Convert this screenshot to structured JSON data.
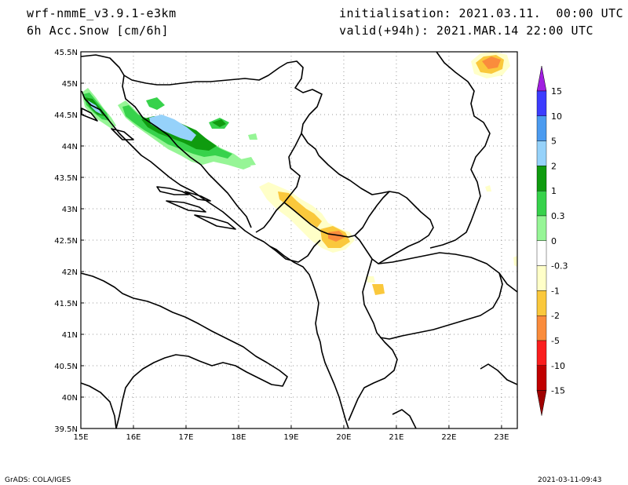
{
  "header": {
    "model": "wrf-nmmE_v3.9.1-e3km",
    "field": "6h Acc.Snow [cm/6h]",
    "init": "initialisation: 2021.03.11.  00:00 UTC",
    "valid": "valid(+94h): 2021.MAR.14 22:00 UTC"
  },
  "map": {
    "lat_labels": [
      "45.5N",
      "45N",
      "44.5N",
      "44N",
      "43.5N",
      "43N",
      "42.5N",
      "42N",
      "41.5N",
      "41N",
      "40.5N",
      "40N",
      "39.5N"
    ],
    "lon_labels": [
      "15E",
      "16E",
      "17E",
      "18E",
      "19E",
      "20E",
      "21E",
      "22E",
      "23E"
    ],
    "lat_range": [
      39.5,
      45.5
    ],
    "lon_range": [
      15.0,
      23.3
    ],
    "grid": "dotted"
  },
  "colorbar": {
    "levels": [
      {
        "label": "15",
        "color": "#a01ee0"
      },
      {
        "label": "10",
        "color": "#3c3cff"
      },
      {
        "label": "5",
        "color": "#4b9bf0"
      },
      {
        "label": "2",
        "color": "#96d2fa"
      },
      {
        "label": "1",
        "color": "#0f9b0f"
      },
      {
        "label": "0.3",
        "color": "#37d24b"
      },
      {
        "label": "0",
        "color": "#96f596"
      },
      {
        "label": "-0.3",
        "color": "#ffffff"
      },
      {
        "label": "-1",
        "color": "#ffffc8"
      },
      {
        "label": "-2",
        "color": "#fac83c"
      },
      {
        "label": "-5",
        "color": "#fa8c3c"
      },
      {
        "label": "-10",
        "color": "#fa1e1e"
      },
      {
        "label": "-15",
        "color": "#c00000"
      }
    ],
    "bottom_color": "#a00000",
    "top_color": "#a01ee0"
  },
  "footer": {
    "left": "GrADS: COLA/IGES",
    "right": "2021-03-11-09:43"
  }
}
